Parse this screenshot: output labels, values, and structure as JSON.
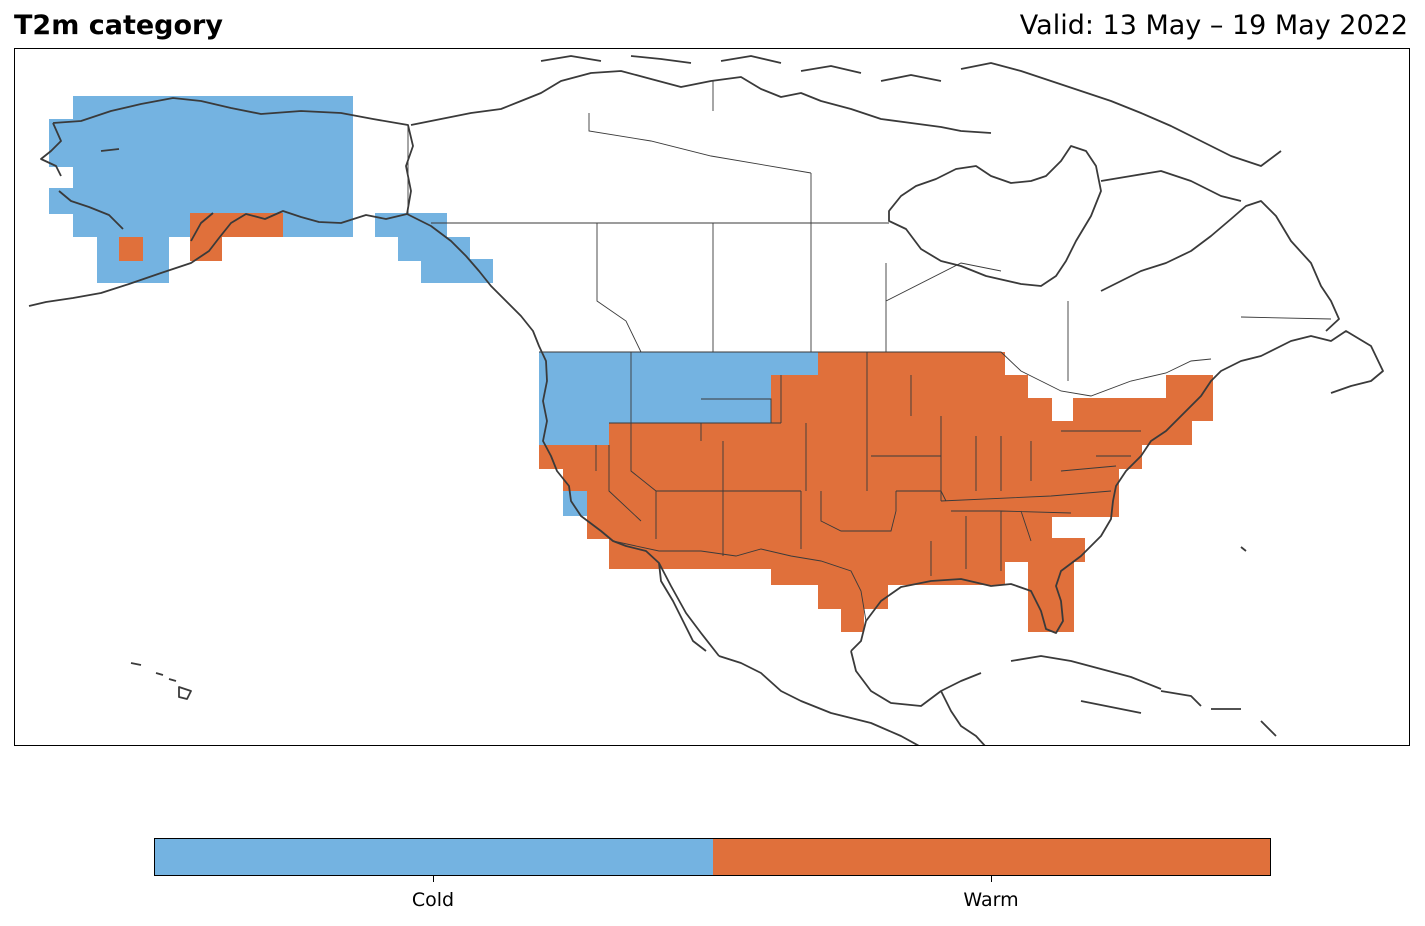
{
  "title": "T2m category",
  "valid": "Valid: 13 May – 19 May 2022",
  "legend": {
    "categories": [
      {
        "label": "Cold",
        "color": "#74b3e1"
      },
      {
        "label": "Warm",
        "color": "#e0703b"
      }
    ]
  },
  "colors": {
    "cold": "#74b3e1",
    "warm": "#e0703b",
    "coastline": "#3a3a3a",
    "border": "#3a3a3a"
  }
}
